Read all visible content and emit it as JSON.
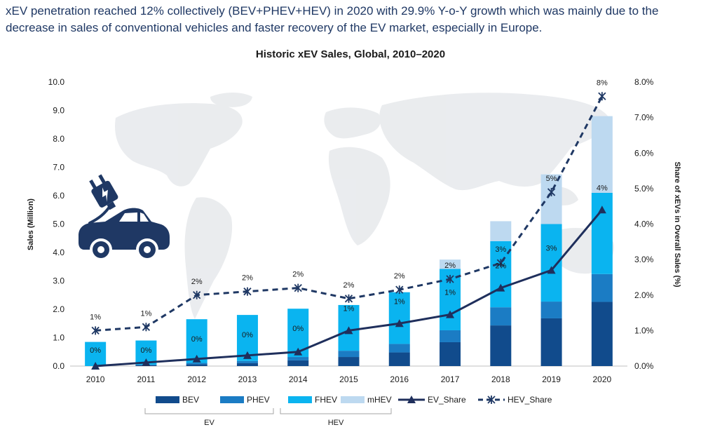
{
  "headline": "xEV penetration reached 12% collectively (BEV+PHEV+HEV) in 2020 with 29.9% Y-o-Y growth which was mainly due to the decrease in sales of conventional vehicles and faster recovery of the EV market, especially in Europe.",
  "chart_data": {
    "type": "bar",
    "title": "Historic xEV Sales, Global, 2010–2020",
    "ylabel": "Sales (Million)",
    "y2label": "Share of xEVs in Overall Sales (%)",
    "ylim": [
      0,
      10
    ],
    "y2lim": [
      0,
      8
    ],
    "y_ticks": [
      "0.0",
      "1.0",
      "2.0",
      "3.0",
      "4.0",
      "5.0",
      "6.0",
      "7.0",
      "8.0",
      "9.0",
      "10.0"
    ],
    "y2_ticks": [
      "0.0%",
      "1.0%",
      "2.0%",
      "3.0%",
      "4.0%",
      "5.0%",
      "6.0%",
      "7.0%",
      "8.0%"
    ],
    "categories": [
      "2010",
      "2011",
      "2012",
      "2013",
      "2014",
      "2015",
      "2016",
      "2017",
      "2018",
      "2019",
      "2020"
    ],
    "bar_series": [
      {
        "name": "BEV",
        "color": "#114b8c",
        "values": [
          0.0,
          0.03,
          0.06,
          0.1,
          0.2,
          0.32,
          0.48,
          0.84,
          1.43,
          1.68,
          2.26
        ]
      },
      {
        "name": "PHEV",
        "color": "#1b7cc4",
        "values": [
          0.0,
          0.02,
          0.05,
          0.08,
          0.12,
          0.22,
          0.3,
          0.42,
          0.64,
          0.59,
          0.98
        ]
      },
      {
        "name": "FHEV",
        "color": "#0ab4f0",
        "values": [
          0.85,
          0.85,
          1.54,
          1.62,
          1.7,
          1.61,
          1.82,
          2.16,
          2.33,
          2.73,
          2.86
        ]
      },
      {
        "name": "mHEV",
        "color": "#bdd9f0",
        "values": [
          0,
          0,
          0,
          0,
          0,
          0,
          0,
          0.33,
          0.7,
          1.75,
          2.7
        ]
      }
    ],
    "line_series": [
      {
        "name": "EV_Share",
        "color": "#1f2f5c",
        "style": "solid",
        "marker": "triangle",
        "values": [
          0.0,
          0.1,
          0.2,
          0.3,
          0.4,
          1.0,
          1.2,
          1.45,
          2.2,
          2.7,
          4.4
        ],
        "labels": [
          "0%",
          "0%",
          "0%",
          "0%",
          "0%",
          "1%",
          "1%",
          "1%",
          "2%",
          "3%",
          "4%"
        ]
      },
      {
        "name": "HEV_Share",
        "color": "#1f3864",
        "style": "dashed",
        "marker": "star",
        "values": [
          1.0,
          1.1,
          2.0,
          2.1,
          2.2,
          1.9,
          2.15,
          2.45,
          2.9,
          4.9,
          7.6
        ],
        "labels": [
          "1%",
          "1%",
          "2%",
          "2%",
          "2%",
          "2%",
          "2%",
          "2%",
          "3%",
          "5%",
          "8%"
        ]
      }
    ],
    "legend_groups": [
      {
        "label": "EV",
        "members": [
          "BEV",
          "PHEV"
        ]
      },
      {
        "label": "HEV",
        "members": [
          "FHEV",
          "mHEV"
        ]
      }
    ],
    "legend_position": "bottom",
    "grid": false
  },
  "icon": "electric-car-plug-icon",
  "background": "world-map-silhouette"
}
